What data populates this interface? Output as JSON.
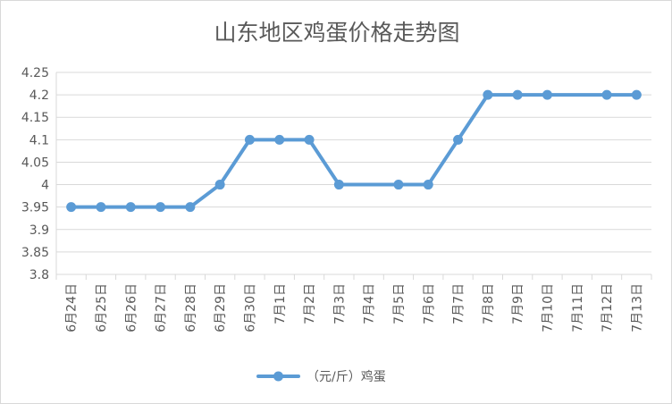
{
  "chart_data": {
    "type": "line",
    "title": "山东地区鸡蛋价格走势图",
    "xlabel": "",
    "ylabel": "",
    "categories": [
      "6月24日",
      "6月25日",
      "6月26日",
      "6月27日",
      "6月28日",
      "6月29日",
      "6月30日",
      "7月1日",
      "7月2日",
      "7月3日",
      "7月4日",
      "7月5日",
      "7月6日",
      "7月7日",
      "7月8日",
      "7月9日",
      "7月10日",
      "7月11日",
      "7月12日",
      "7月13日"
    ],
    "y_ticks": [
      "3.8",
      "3.85",
      "3.9",
      "3.95",
      "4",
      "4.05",
      "4.1",
      "4.15",
      "4.2",
      "4.25"
    ],
    "ylim": [
      3.8,
      4.25
    ],
    "grid": true,
    "legend_position": "bottom",
    "series": [
      {
        "name": "（元/斤）鸡蛋",
        "color": "#5b9bd5",
        "values": [
          3.95,
          3.95,
          3.95,
          3.95,
          3.95,
          4.0,
          4.1,
          4.1,
          4.1,
          4.0,
          null,
          4.0,
          4.0,
          4.1,
          4.2,
          4.2,
          4.2,
          null,
          4.2,
          4.2
        ]
      }
    ]
  }
}
